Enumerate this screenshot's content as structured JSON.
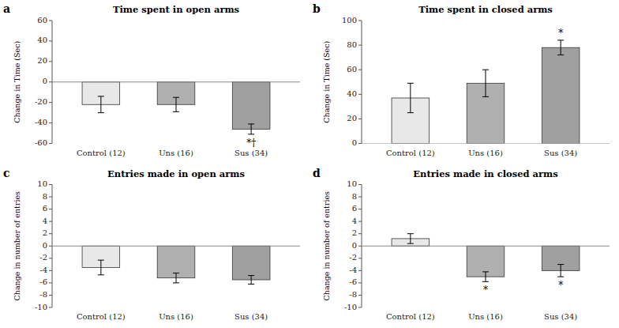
{
  "chart_data": [
    {
      "type": "bar",
      "label": "a",
      "title": "Time spent in open arms",
      "ylabel": "Change in Time (Sec)",
      "categories": [
        "Control (12)",
        "Uns (16)",
        "Sus (34)"
      ],
      "values": [
        -22,
        -22,
        -46
      ],
      "errors": [
        8,
        7,
        5
      ],
      "colors": [
        "#e8e8e8",
        "#b0b0b0",
        "#a0a0a0"
      ],
      "ylim": [
        -60,
        60
      ],
      "yticks": [
        -60,
        -40,
        -20,
        0,
        20,
        40,
        60
      ],
      "annotations": [
        {
          "text": "*†",
          "x": "Sus (34)"
        }
      ],
      "grid": false
    },
    {
      "type": "bar",
      "label": "b",
      "title": "Time spent in closed arms",
      "ylabel": "Change in Time (Sec)",
      "categories": [
        "Control (12)",
        "Uns (16)",
        "Sus (34)"
      ],
      "values": [
        37,
        49,
        78
      ],
      "errors": [
        12,
        11,
        6
      ],
      "colors": [
        "#e8e8e8",
        "#b0b0b0",
        "#a0a0a0"
      ],
      "ylim": [
        0,
        100
      ],
      "yticks": [
        0,
        20,
        40,
        60,
        80,
        100
      ],
      "annotations": [
        {
          "text": "*",
          "x": "Sus (34)"
        }
      ],
      "grid": false
    },
    {
      "type": "bar",
      "label": "c",
      "title": "Entries made in open arms",
      "ylabel": "Change in number of entries",
      "categories": [
        "Control (12)",
        "Uns (16)",
        "Sus (34)"
      ],
      "values": [
        -3.5,
        -5.2,
        -5.5
      ],
      "errors": [
        1.2,
        0.8,
        0.7
      ],
      "colors": [
        "#e8e8e8",
        "#b0b0b0",
        "#a0a0a0"
      ],
      "ylim": [
        -10,
        10
      ],
      "yticks": [
        -10,
        -8,
        -6,
        -4,
        -2,
        0,
        2,
        4,
        6,
        8,
        10
      ],
      "grid": false
    },
    {
      "type": "bar",
      "label": "d",
      "title": "Entries made in closed arms",
      "ylabel": "Change in number of entries",
      "categories": [
        "Control (12)",
        "Uns (16)",
        "Sus (34)"
      ],
      "values": [
        1.2,
        -5.0,
        -4.0
      ],
      "errors": [
        0.8,
        0.8,
        1.0
      ],
      "colors": [
        "#e8e8e8",
        "#b0b0b0",
        "#a0a0a0"
      ],
      "ylim": [
        -10,
        10
      ],
      "yticks": [
        -10,
        -8,
        -6,
        -4,
        -2,
        0,
        2,
        4,
        6,
        8,
        10
      ],
      "annotations": [
        {
          "text": "*",
          "x": "Uns (16)"
        },
        {
          "text": "*",
          "x": "Sus (34)"
        }
      ],
      "grid": false
    }
  ]
}
